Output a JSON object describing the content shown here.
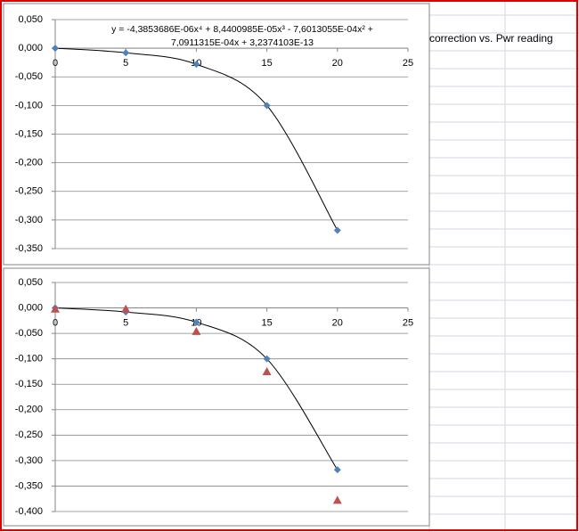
{
  "cell_text": "correction vs. Pwr reading",
  "chart_data": [
    {
      "type": "scatter",
      "x": [
        0,
        5,
        10,
        15,
        20
      ],
      "series": [
        {
          "color": "#4f81bd",
          "marker": "diamond",
          "values": [
            0,
            -0.008,
            -0.028,
            -0.1,
            -0.318
          ],
          "trendline": true
        }
      ],
      "equation": [
        "y = -4,3853686E-06x⁴ + 8,4400985E-05x³ - 7,6013055E-04x² +",
        "7,0911315E-04x + 3,2374103E-13"
      ],
      "xlim": [
        0,
        25
      ],
      "xticks": [
        0,
        5,
        10,
        15,
        20,
        25
      ],
      "ylim": [
        -0.35,
        0.05
      ],
      "yticks": [
        {
          "value": 0.05,
          "label": "0,050"
        },
        {
          "value": 0,
          "label": "0,000"
        },
        {
          "value": -0.05,
          "label": "-0,050"
        },
        {
          "value": -0.1,
          "label": "-0,100"
        },
        {
          "value": -0.15,
          "label": "-0,150"
        },
        {
          "value": -0.2,
          "label": "-0,200"
        },
        {
          "value": -0.25,
          "label": "-0,250"
        },
        {
          "value": -0.3,
          "label": "-0,300"
        },
        {
          "value": -0.35,
          "label": "-0,350"
        }
      ],
      "grid": true
    },
    {
      "type": "scatter",
      "x": [
        0,
        5,
        10,
        15,
        20
      ],
      "series": [
        {
          "color": "#4f81bd",
          "marker": "diamond",
          "values": [
            0,
            -0.008,
            -0.028,
            -0.1,
            -0.318
          ],
          "trendline": true
        },
        {
          "color": "#c0504d",
          "marker": "triangle",
          "values": [
            -0.002,
            -0.002,
            -0.046,
            -0.125,
            -0.378
          ],
          "trendline": false
        }
      ],
      "xlim": [
        0,
        25
      ],
      "xticks": [
        0,
        5,
        10,
        15,
        20,
        25
      ],
      "ylim": [
        -0.4,
        0.05
      ],
      "yticks": [
        {
          "value": 0.05,
          "label": "0,050"
        },
        {
          "value": 0,
          "label": "0,000"
        },
        {
          "value": -0.05,
          "label": "-0,050"
        },
        {
          "value": -0.1,
          "label": "-0,100"
        },
        {
          "value": -0.15,
          "label": "-0,150"
        },
        {
          "value": -0.2,
          "label": "-0,200"
        },
        {
          "value": -0.25,
          "label": "-0,250"
        },
        {
          "value": -0.3,
          "label": "-0,300"
        },
        {
          "value": -0.35,
          "label": "-0,350"
        },
        {
          "value": -0.4,
          "label": "-0,400"
        }
      ],
      "grid": true
    }
  ]
}
